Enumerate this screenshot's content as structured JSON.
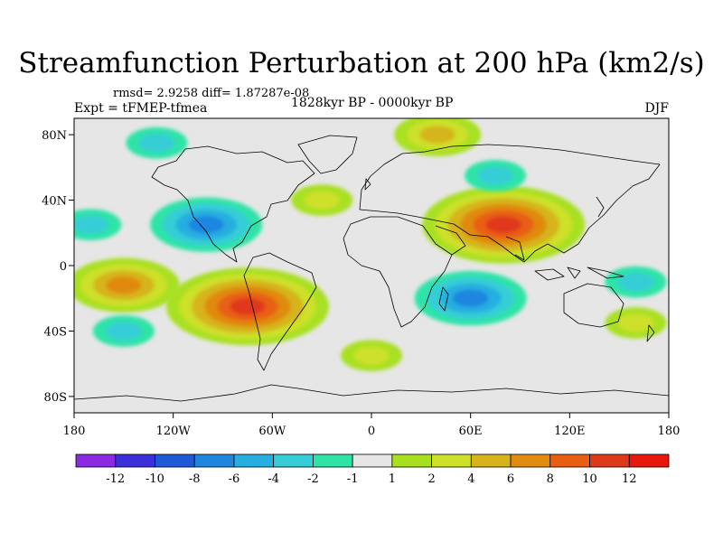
{
  "header": {
    "title": "Streamfunction Perturbation at 200 hPa (km2/s)",
    "stats": "rmsd= 2.9258  diff= 1.87287e-08",
    "experiment": "Expt = tFMEP-tfmea",
    "period": "1828kyr BP - 0000kyr BP",
    "season": "DJF"
  },
  "chart_data": {
    "type": "heatmap",
    "title": "Streamfunction Perturbation at 200 hPa (km2/s)",
    "subtitle": "1828kyr BP - 0000kyr BP",
    "annotations": [
      "rmsd= 2.9258  diff= 1.87287e-08",
      "Expt = tFMEP-tfmea",
      "DJF"
    ],
    "xlim": [
      -180,
      180
    ],
    "ylim": [
      -90,
      90
    ],
    "x_ticks": [
      {
        "value": -180,
        "label": "180"
      },
      {
        "value": -120,
        "label": "120W"
      },
      {
        "value": -60,
        "label": "60W"
      },
      {
        "value": 0,
        "label": "0"
      },
      {
        "value": 60,
        "label": "60E"
      },
      {
        "value": 120,
        "label": "120E"
      },
      {
        "value": 180,
        "label": "180"
      }
    ],
    "y_ticks": [
      {
        "value": 80,
        "label": "80N"
      },
      {
        "value": 40,
        "label": "40N"
      },
      {
        "value": 0,
        "label": "0"
      },
      {
        "value": -40,
        "label": "40S"
      },
      {
        "value": -80,
        "label": "80S"
      }
    ],
    "colorbar": {
      "labels": [
        "-12",
        "-10",
        "-8",
        "-6",
        "-4",
        "-2",
        "-1",
        "1",
        "2",
        "4",
        "6",
        "8",
        "10",
        "12"
      ],
      "colors": [
        "#8a2be2",
        "#3a2fd9",
        "#1f5ad6",
        "#1f86e0",
        "#25aee0",
        "#35cdd6",
        "#2fe3a8",
        "#e6e6e6",
        "#a8e020",
        "#cde02a",
        "#d6b41a",
        "#e08a10",
        "#e85f12",
        "#e0391a",
        "#e8180c"
      ]
    },
    "features": [
      {
        "lon": 80,
        "lat": 25,
        "value": 10,
        "sign": "positive"
      },
      {
        "lon": -75,
        "lat": -25,
        "value": 10,
        "sign": "positive"
      },
      {
        "lon": -150,
        "lat": -12,
        "value": 6,
        "sign": "positive"
      },
      {
        "lon": 40,
        "lat": 80,
        "value": 4,
        "sign": "positive"
      },
      {
        "lon": -30,
        "lat": 40,
        "value": 2,
        "sign": "positive"
      },
      {
        "lon": 160,
        "lat": -35,
        "value": 2,
        "sign": "positive"
      },
      {
        "lon": 0,
        "lat": -55,
        "value": 2,
        "sign": "positive"
      },
      {
        "lon": -100,
        "lat": 25,
        "value": -6,
        "sign": "negative"
      },
      {
        "lon": 60,
        "lat": -20,
        "value": -6,
        "sign": "negative"
      },
      {
        "lon": 75,
        "lat": 55,
        "value": -2,
        "sign": "negative"
      },
      {
        "lon": -170,
        "lat": 25,
        "value": -2,
        "sign": "negative"
      },
      {
        "lon": -150,
        "lat": -40,
        "value": -2,
        "sign": "negative"
      },
      {
        "lon": -130,
        "lat": 75,
        "value": -2,
        "sign": "negative"
      },
      {
        "lon": 160,
        "lat": -10,
        "value": -2,
        "sign": "negative"
      }
    ]
  }
}
